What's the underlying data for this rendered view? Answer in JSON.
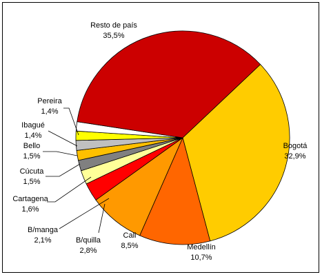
{
  "chart_data": {
    "type": "pie",
    "categories": [
      "Bogotá",
      "Medellín",
      "Cali",
      "B/quilla",
      "B/manga",
      "Cartagena",
      "Cúcuta",
      "Bello",
      "Ibagué",
      "Pereira",
      "Resto de país"
    ],
    "values": [
      32.9,
      10.7,
      8.5,
      2.8,
      2.1,
      1.6,
      1.5,
      1.5,
      1.4,
      1.4,
      35.5
    ],
    "value_labels": [
      "32,9%",
      "10,7%",
      "8,5%",
      "2,8%",
      "2,1%",
      "1,6%",
      "1,5%",
      "1,5%",
      "1,4%",
      "1,4%",
      "35,5%"
    ],
    "colors": [
      "#FFCC00",
      "#FF6600",
      "#FF9900",
      "#FF0000",
      "#FFFF99",
      "#808080",
      "#FFC000",
      "#C0C0C0",
      "#FFFF00",
      "#FFFFFF",
      "#CC0000"
    ]
  }
}
